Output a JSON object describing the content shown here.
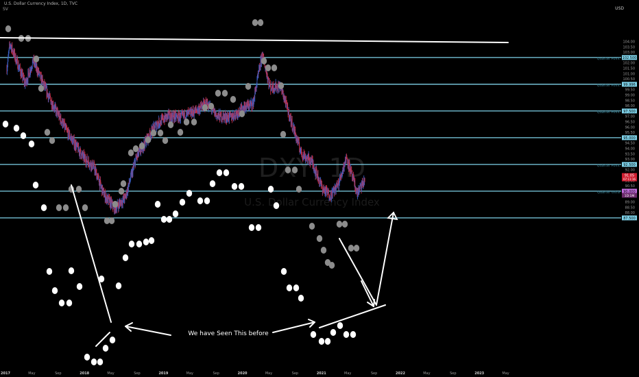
{
  "header": {
    "title": "U.S. Dollar Currency Index, 1D, TVC",
    "indicator": "SV",
    "currency": "USD"
  },
  "watermark": {
    "symbol": "DXY, 1D",
    "name": "U.S. Dollar Currency Index"
  },
  "colors": {
    "background": "#000000",
    "level_line": "#7fd3ea",
    "candle_up": "#3b5fc4",
    "candle_down": "#c8304a",
    "annotation": "#ffffff",
    "dot_gray": "#8c8c8c",
    "axis_text": "#9a9a9a"
  },
  "chart_data": {
    "type": "line",
    "x_axis_labels": [
      "2017",
      "May",
      "Sep",
      "2018",
      "May",
      "Sep",
      "2019",
      "May",
      "Sep",
      "2020",
      "May",
      "Sep",
      "2021",
      "May",
      "Sep",
      "2022",
      "May",
      "Sep",
      "2023",
      "May"
    ],
    "y_axis_ticks": [
      "104.00",
      "103.50",
      "103.00",
      "102.50",
      "102.00",
      "101.50",
      "101.00",
      "100.50",
      "100.00",
      "99.50",
      "99.00",
      "98.50",
      "98.00",
      "97.50",
      "97.00",
      "96.50",
      "96.00",
      "95.50",
      "95.00",
      "94.50",
      "94.00",
      "93.50",
      "93.00",
      "92.50",
      "92.00",
      "91.50",
      "91.00",
      "90.50",
      "90.00",
      "89.50",
      "89.00",
      "88.50",
      "88.00",
      "87.50"
    ],
    "ylim": [
      87.4,
      104.4
    ],
    "levels": [
      {
        "value": 102.5,
        "label": "Quarter Point",
        "tag": "102.500"
      },
      {
        "value": 99.996,
        "label": "Quarter Point",
        "tag": "99.996"
      },
      {
        "value": 97.5,
        "label": "Quarter Point",
        "tag": "97.500"
      },
      {
        "value": 95.0,
        "label": "",
        "tag": "95.000"
      },
      {
        "value": 92.5,
        "label": "Quarter Point",
        "tag": "92.500"
      },
      {
        "value": 90.0,
        "label": "Quarter Ultra",
        "tag": "90.000"
      },
      {
        "value": 87.5,
        "label": "",
        "tag": "87.500"
      }
    ],
    "last_price": {
      "value": 91.05,
      "tag": "91.05",
      "sub": "07:11:16",
      "cur_tag": "91.06",
      "cur_sub": "1D:1M"
    },
    "price_path": [
      {
        "t": 0.0,
        "v": 101.5
      },
      {
        "t": 0.12,
        "v": 103.8
      },
      {
        "t": 0.7,
        "v": 100.0
      },
      {
        "t": 1.0,
        "v": 102.2
      },
      {
        "t": 1.6,
        "v": 98.8
      },
      {
        "t": 2.3,
        "v": 95.5
      },
      {
        "t": 2.9,
        "v": 93.2
      },
      {
        "t": 3.3,
        "v": 92.3
      },
      {
        "t": 3.7,
        "v": 89.6
      },
      {
        "t": 4.1,
        "v": 88.4
      },
      {
        "t": 4.5,
        "v": 89.4
      },
      {
        "t": 4.9,
        "v": 93.0
      },
      {
        "t": 5.3,
        "v": 94.8
      },
      {
        "t": 5.7,
        "v": 96.3
      },
      {
        "t": 6.1,
        "v": 97.0
      },
      {
        "t": 6.6,
        "v": 96.9
      },
      {
        "t": 7.1,
        "v": 97.4
      },
      {
        "t": 7.6,
        "v": 98.2
      },
      {
        "t": 8.0,
        "v": 97.0
      },
      {
        "t": 8.5,
        "v": 96.9
      },
      {
        "t": 9.0,
        "v": 97.8
      },
      {
        "t": 9.35,
        "v": 98.2
      },
      {
        "t": 9.7,
        "v": 102.8
      },
      {
        "t": 10.0,
        "v": 99.7
      },
      {
        "t": 10.4,
        "v": 99.8
      },
      {
        "t": 10.8,
        "v": 96.5
      },
      {
        "t": 11.2,
        "v": 93.5
      },
      {
        "t": 11.6,
        "v": 92.7
      },
      {
        "t": 12.0,
        "v": 90.2
      },
      {
        "t": 12.3,
        "v": 89.6
      },
      {
        "t": 12.6,
        "v": 90.7
      },
      {
        "t": 12.9,
        "v": 93.2
      },
      {
        "t": 13.3,
        "v": 89.8
      },
      {
        "t": 13.6,
        "v": 91.0
      }
    ],
    "white_dots": [
      [
        8,
        181
      ],
      [
        24,
        187
      ],
      [
        34,
        198
      ],
      [
        46,
        210
      ],
      [
        52,
        270
      ],
      [
        64,
        303
      ],
      [
        72,
        396
      ],
      [
        80,
        424
      ],
      [
        90,
        442
      ],
      [
        101,
        442
      ],
      [
        104,
        395
      ],
      [
        116,
        418
      ],
      [
        127,
        521
      ],
      [
        137,
        528
      ],
      [
        146,
        528
      ],
      [
        154,
        508
      ],
      [
        164,
        496
      ],
      [
        173,
        417
      ],
      [
        148,
        407
      ],
      [
        183,
        376
      ],
      [
        192,
        356
      ],
      [
        203,
        356
      ],
      [
        213,
        353
      ],
      [
        221,
        351
      ],
      [
        230,
        298
      ],
      [
        239,
        320
      ],
      [
        247,
        320
      ],
      [
        256,
        312
      ],
      [
        266,
        295
      ],
      [
        276,
        282
      ],
      [
        292,
        293
      ],
      [
        302,
        293
      ],
      [
        310,
        268
      ],
      [
        320,
        252
      ],
      [
        330,
        252
      ],
      [
        342,
        272
      ],
      [
        352,
        272
      ],
      [
        367,
        332
      ],
      [
        377,
        332
      ],
      [
        395,
        276
      ],
      [
        403,
        300
      ],
      [
        414,
        396
      ],
      [
        422,
        420
      ],
      [
        432,
        420
      ],
      [
        439,
        435
      ],
      [
        457,
        488
      ],
      [
        469,
        498
      ],
      [
        478,
        498
      ],
      [
        486,
        485
      ],
      [
        496,
        475
      ],
      [
        505,
        488
      ],
      [
        515,
        488
      ]
    ],
    "gray_dots": [
      [
        12,
        42
      ],
      [
        31,
        56
      ],
      [
        41,
        56
      ],
      [
        53,
        86
      ],
      [
        60,
        129
      ],
      [
        69,
        193
      ],
      [
        76,
        205
      ],
      [
        86,
        303
      ],
      [
        96,
        303
      ],
      [
        104,
        276
      ],
      [
        115,
        276
      ],
      [
        124,
        303
      ],
      [
        156,
        322
      ],
      [
        163,
        322
      ],
      [
        168,
        298
      ],
      [
        177,
        279
      ],
      [
        180,
        268
      ],
      [
        191,
        223
      ],
      [
        198,
        217
      ],
      [
        207,
        213
      ],
      [
        216,
        204
      ],
      [
        224,
        194
      ],
      [
        234,
        194
      ],
      [
        241,
        205
      ],
      [
        249,
        182
      ],
      [
        263,
        193
      ],
      [
        272,
        178
      ],
      [
        283,
        178
      ],
      [
        299,
        157
      ],
      [
        308,
        155
      ],
      [
        318,
        136
      ],
      [
        328,
        136
      ],
      [
        340,
        145
      ],
      [
        353,
        166
      ],
      [
        362,
        126
      ],
      [
        372,
        33
      ],
      [
        380,
        33
      ],
      [
        385,
        89
      ],
      [
        391,
        99
      ],
      [
        400,
        99
      ],
      [
        410,
        125
      ],
      [
        413,
        196
      ],
      [
        420,
        248
      ],
      [
        430,
        248
      ],
      [
        436,
        276
      ],
      [
        455,
        330
      ],
      [
        466,
        348
      ],
      [
        472,
        365
      ],
      [
        478,
        383
      ],
      [
        484,
        387
      ],
      [
        495,
        327
      ],
      [
        503,
        327
      ],
      [
        512,
        362
      ],
      [
        520,
        362
      ]
    ],
    "annotation_text": "We have Seen This before"
  }
}
